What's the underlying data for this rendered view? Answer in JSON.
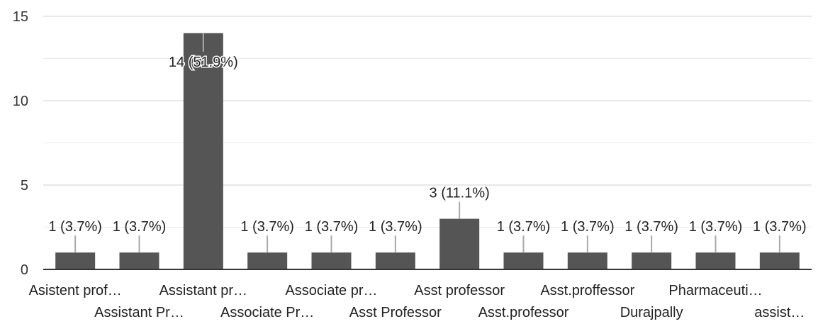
{
  "chart_data": {
    "type": "bar",
    "title": "",
    "xlabel": "",
    "ylabel": "",
    "ylim": [
      0,
      15
    ],
    "yticks": [
      0,
      5,
      10,
      15
    ],
    "grid": true,
    "legend": "none",
    "bar_color": "#555555",
    "categories": [
      "Asistent prof…",
      "Assistant Pr…",
      "Assistant pr…",
      "Associate Pr…",
      "Associate pr…",
      "Asst Professor",
      "Asst professor",
      "Asst.professor",
      "Asst.proffessor",
      "Durajpally",
      "Pharmaceuti…",
      "assist…"
    ],
    "values": [
      1,
      1,
      14,
      1,
      1,
      1,
      3,
      1,
      1,
      1,
      1,
      1
    ],
    "data_labels": [
      "1 (3.7%)",
      "1 (3.7%)",
      "14 (51.9%)",
      "1 (3.7%)",
      "1 (3.7%)",
      "1 (3.7%)",
      "3 (11.1%)",
      "1 (3.7%)",
      "1 (3.7%)",
      "1 (3.7%)",
      "1 (3.7%)",
      "1 (3.7%)"
    ]
  }
}
